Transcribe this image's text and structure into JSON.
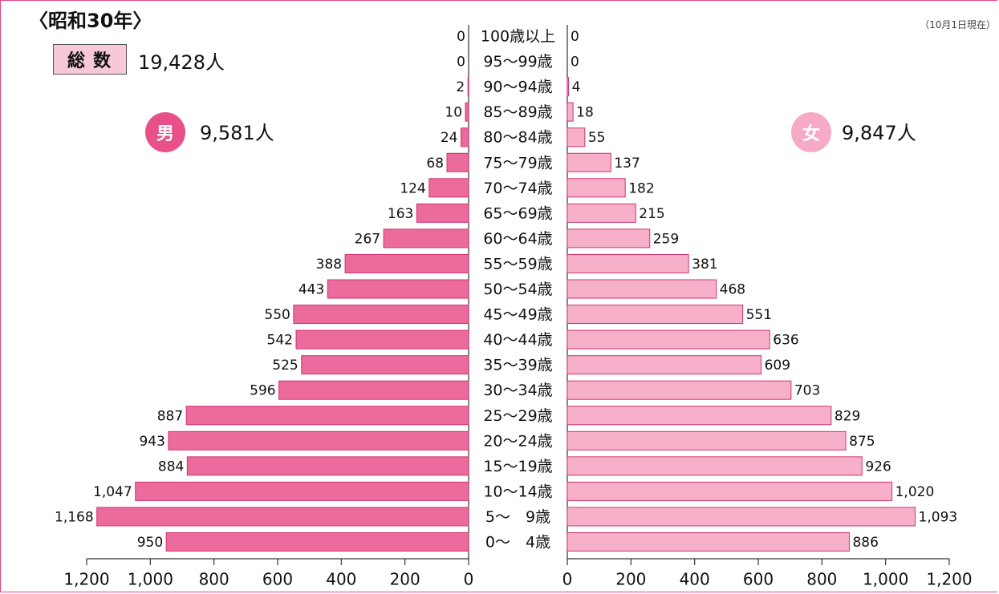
{
  "header": {
    "title": "〈昭和30年〉",
    "as_of": "（10月1日現在）",
    "total_label": "総数",
    "total_value": "19,428人",
    "male_label": "男",
    "male_total": "9,581人",
    "female_label": "女",
    "female_total": "9,847人"
  },
  "colors": {
    "male": "#ea6b9c",
    "female": "#f7b0c9",
    "male_circle": "#e8508a",
    "female_circle": "#f6aac6",
    "frame": "#e6447e"
  },
  "chart_data": {
    "type": "bar",
    "categories": [
      "100歳以上",
      "95〜99歳",
      "90〜94歳",
      "85〜89歳",
      "80〜84歳",
      "75〜79歳",
      "70〜74歳",
      "65〜69歳",
      "60〜64歳",
      "55〜59歳",
      "50〜54歳",
      "45〜49歳",
      "40〜44歳",
      "35〜39歳",
      "30〜34歳",
      "25〜29歳",
      "20〜24歳",
      "15〜19歳",
      "10〜14歳",
      "5〜　9歳",
      "0〜　4歳"
    ],
    "series": [
      {
        "name": "男",
        "values": [
          0,
          0,
          2,
          10,
          24,
          68,
          124,
          163,
          267,
          388,
          443,
          550,
          542,
          525,
          596,
          887,
          943,
          884,
          1047,
          1168,
          950
        ],
        "labels": [
          "0",
          "0",
          "2",
          "10",
          "24",
          "68",
          "124",
          "163",
          "267",
          "388",
          "443",
          "550",
          "542",
          "525",
          "596",
          "887",
          "943",
          "884",
          "1,047",
          "1,168",
          "950"
        ]
      },
      {
        "name": "女",
        "values": [
          0,
          0,
          4,
          18,
          55,
          137,
          182,
          215,
          259,
          381,
          468,
          551,
          636,
          609,
          703,
          829,
          875,
          926,
          1020,
          1093,
          886
        ],
        "labels": [
          "0",
          "0",
          "4",
          "18",
          "55",
          "137",
          "182",
          "215",
          "259",
          "381",
          "468",
          "551",
          "636",
          "609",
          "703",
          "829",
          "875",
          "926",
          "1,020",
          "1,093",
          "886"
        ]
      }
    ],
    "xlim": [
      0,
      1200
    ],
    "ticks": [
      0,
      200,
      400,
      600,
      800,
      1000,
      1200
    ],
    "tick_labels": [
      "0",
      "200",
      "400",
      "600",
      "800",
      "1,000",
      "1,200"
    ]
  }
}
